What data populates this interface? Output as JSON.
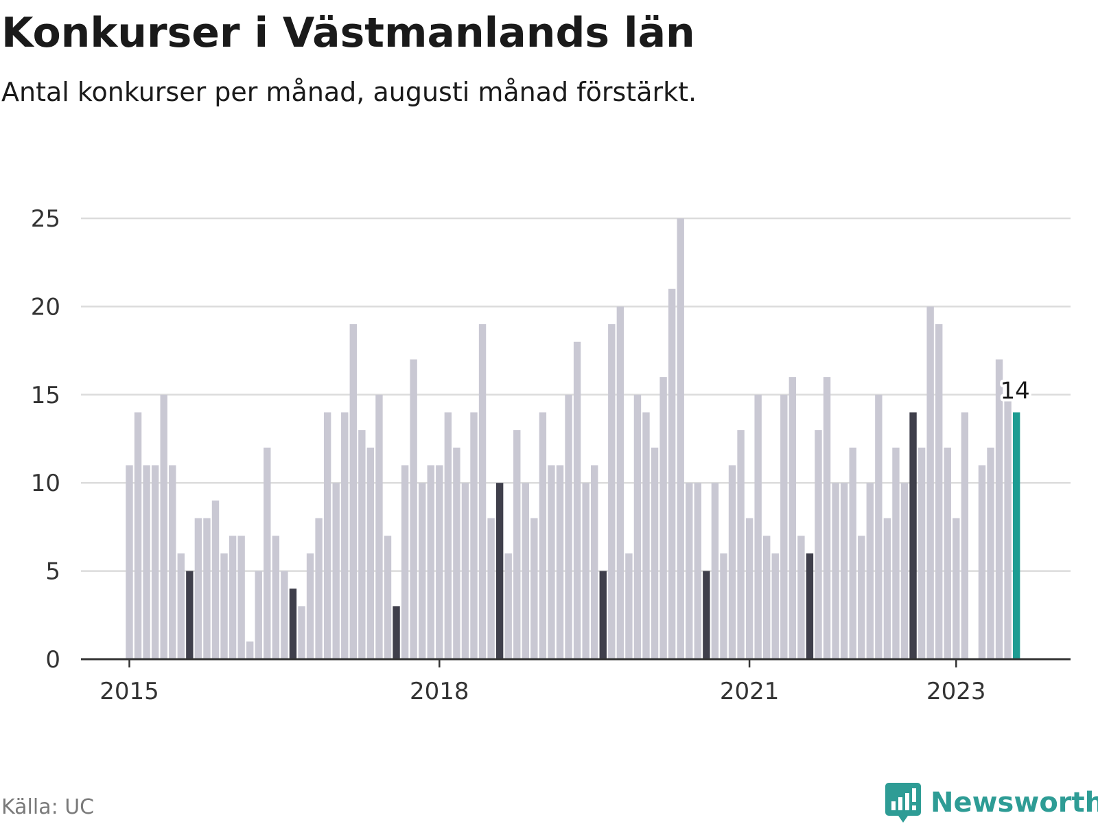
{
  "header": {
    "title": "Konkurser i Västmanlands län",
    "subtitle": "Antal konkurser per månad, augusti månad förstärkt."
  },
  "footer": {
    "source": "Källa: UC",
    "brand": "Newsworthy",
    "brand_icon": "newsworthy-logo-icon"
  },
  "colors": {
    "bar": "#c9c8d3",
    "highlight": "#3f3f4b",
    "latest": "#1d9c92",
    "grid": "#dcdcdc",
    "axis": "#333333",
    "text": "#333333",
    "brand": "#2e9c95"
  },
  "chart_data": {
    "type": "bar",
    "title": "Konkurser i Västmanlands län",
    "subtitle": "Antal konkurser per månad, augusti månad förstärkt.",
    "xlabel": "",
    "ylabel": "",
    "ylim": [
      0,
      25
    ],
    "yticks": [
      0,
      5,
      10,
      15,
      20,
      25
    ],
    "grid": true,
    "start": "2015-01",
    "end": "2023-08",
    "xtick_labels": [
      {
        "label": "2015",
        "index": 0
      },
      {
        "label": "2018",
        "index": 36
      },
      {
        "label": "2021",
        "index": 72
      },
      {
        "label": "2023",
        "index": 96
      }
    ],
    "series": [
      {
        "name": "Antal konkurser",
        "values": [
          11,
          14,
          11,
          11,
          15,
          11,
          6,
          5,
          8,
          8,
          9,
          6,
          7,
          7,
          1,
          5,
          12,
          7,
          5,
          4,
          3,
          6,
          8,
          14,
          10,
          14,
          19,
          13,
          12,
          15,
          7,
          3,
          11,
          17,
          10,
          11,
          11,
          14,
          12,
          10,
          14,
          19,
          8,
          10,
          6,
          13,
          10,
          8,
          14,
          11,
          11,
          15,
          18,
          10,
          11,
          5,
          19,
          20,
          6,
          15,
          14,
          12,
          16,
          21,
          25,
          10,
          10,
          5,
          10,
          6,
          11,
          13,
          8,
          15,
          7,
          6,
          15,
          16,
          7,
          6,
          13,
          16,
          10,
          10,
          12,
          7,
          10,
          15,
          8,
          12,
          10,
          14,
          12,
          20,
          19,
          12,
          8,
          14,
          0,
          11,
          12,
          17,
          15,
          14
        ]
      }
    ],
    "highlighted_month": "augusti",
    "latest_label": "14"
  }
}
